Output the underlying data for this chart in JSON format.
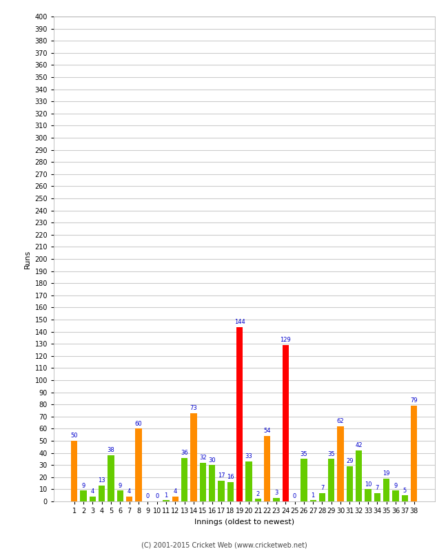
{
  "xlabel": "Innings (oldest to newest)",
  "ylabel": "Runs",
  "copyright": "(C) 2001-2015 Cricket Web (www.cricketweb.net)",
  "innings": [
    1,
    2,
    3,
    4,
    5,
    6,
    7,
    8,
    9,
    10,
    11,
    12,
    13,
    14,
    15,
    16,
    17,
    18,
    19,
    20,
    21,
    22,
    23,
    24,
    25,
    26,
    27,
    28,
    29,
    30,
    31,
    32,
    33,
    34,
    35,
    36,
    37,
    38
  ],
  "values": [
    50,
    9,
    4,
    13,
    38,
    9,
    4,
    60,
    0,
    0,
    1,
    4,
    36,
    73,
    32,
    30,
    17,
    16,
    144,
    33,
    2,
    54,
    3,
    129,
    0,
    35,
    1,
    7,
    35,
    62,
    29,
    42,
    10,
    7,
    19,
    9,
    5,
    79
  ],
  "colors": [
    "#ff8c00",
    "#66cc00",
    "#66cc00",
    "#66cc00",
    "#66cc00",
    "#66cc00",
    "#ff8c00",
    "#ff8c00",
    "#66cc00",
    "#66cc00",
    "#66cc00",
    "#ff8c00",
    "#66cc00",
    "#ff8c00",
    "#66cc00",
    "#66cc00",
    "#66cc00",
    "#66cc00",
    "#ff0000",
    "#66cc00",
    "#66cc00",
    "#ff8c00",
    "#66cc00",
    "#ff0000",
    "#66cc00",
    "#66cc00",
    "#66cc00",
    "#66cc00",
    "#66cc00",
    "#ff8c00",
    "#66cc00",
    "#66cc00",
    "#66cc00",
    "#66cc00",
    "#66cc00",
    "#66cc00",
    "#66cc00",
    "#ff8c00"
  ],
  "ylim": [
    0,
    400
  ],
  "yticks": [
    0,
    10,
    20,
    30,
    40,
    50,
    60,
    70,
    80,
    90,
    100,
    110,
    120,
    130,
    140,
    150,
    160,
    170,
    180,
    190,
    200,
    210,
    220,
    230,
    240,
    250,
    260,
    270,
    280,
    290,
    300,
    310,
    320,
    330,
    340,
    350,
    360,
    370,
    380,
    390,
    400
  ],
  "bg_color": "#ffffff",
  "grid_color": "#cccccc",
  "label_color": "#0000cc",
  "tick_label_fontsize": 7,
  "axis_label_fontsize": 8,
  "bar_label_fontsize": 6,
  "copyright_fontsize": 7
}
